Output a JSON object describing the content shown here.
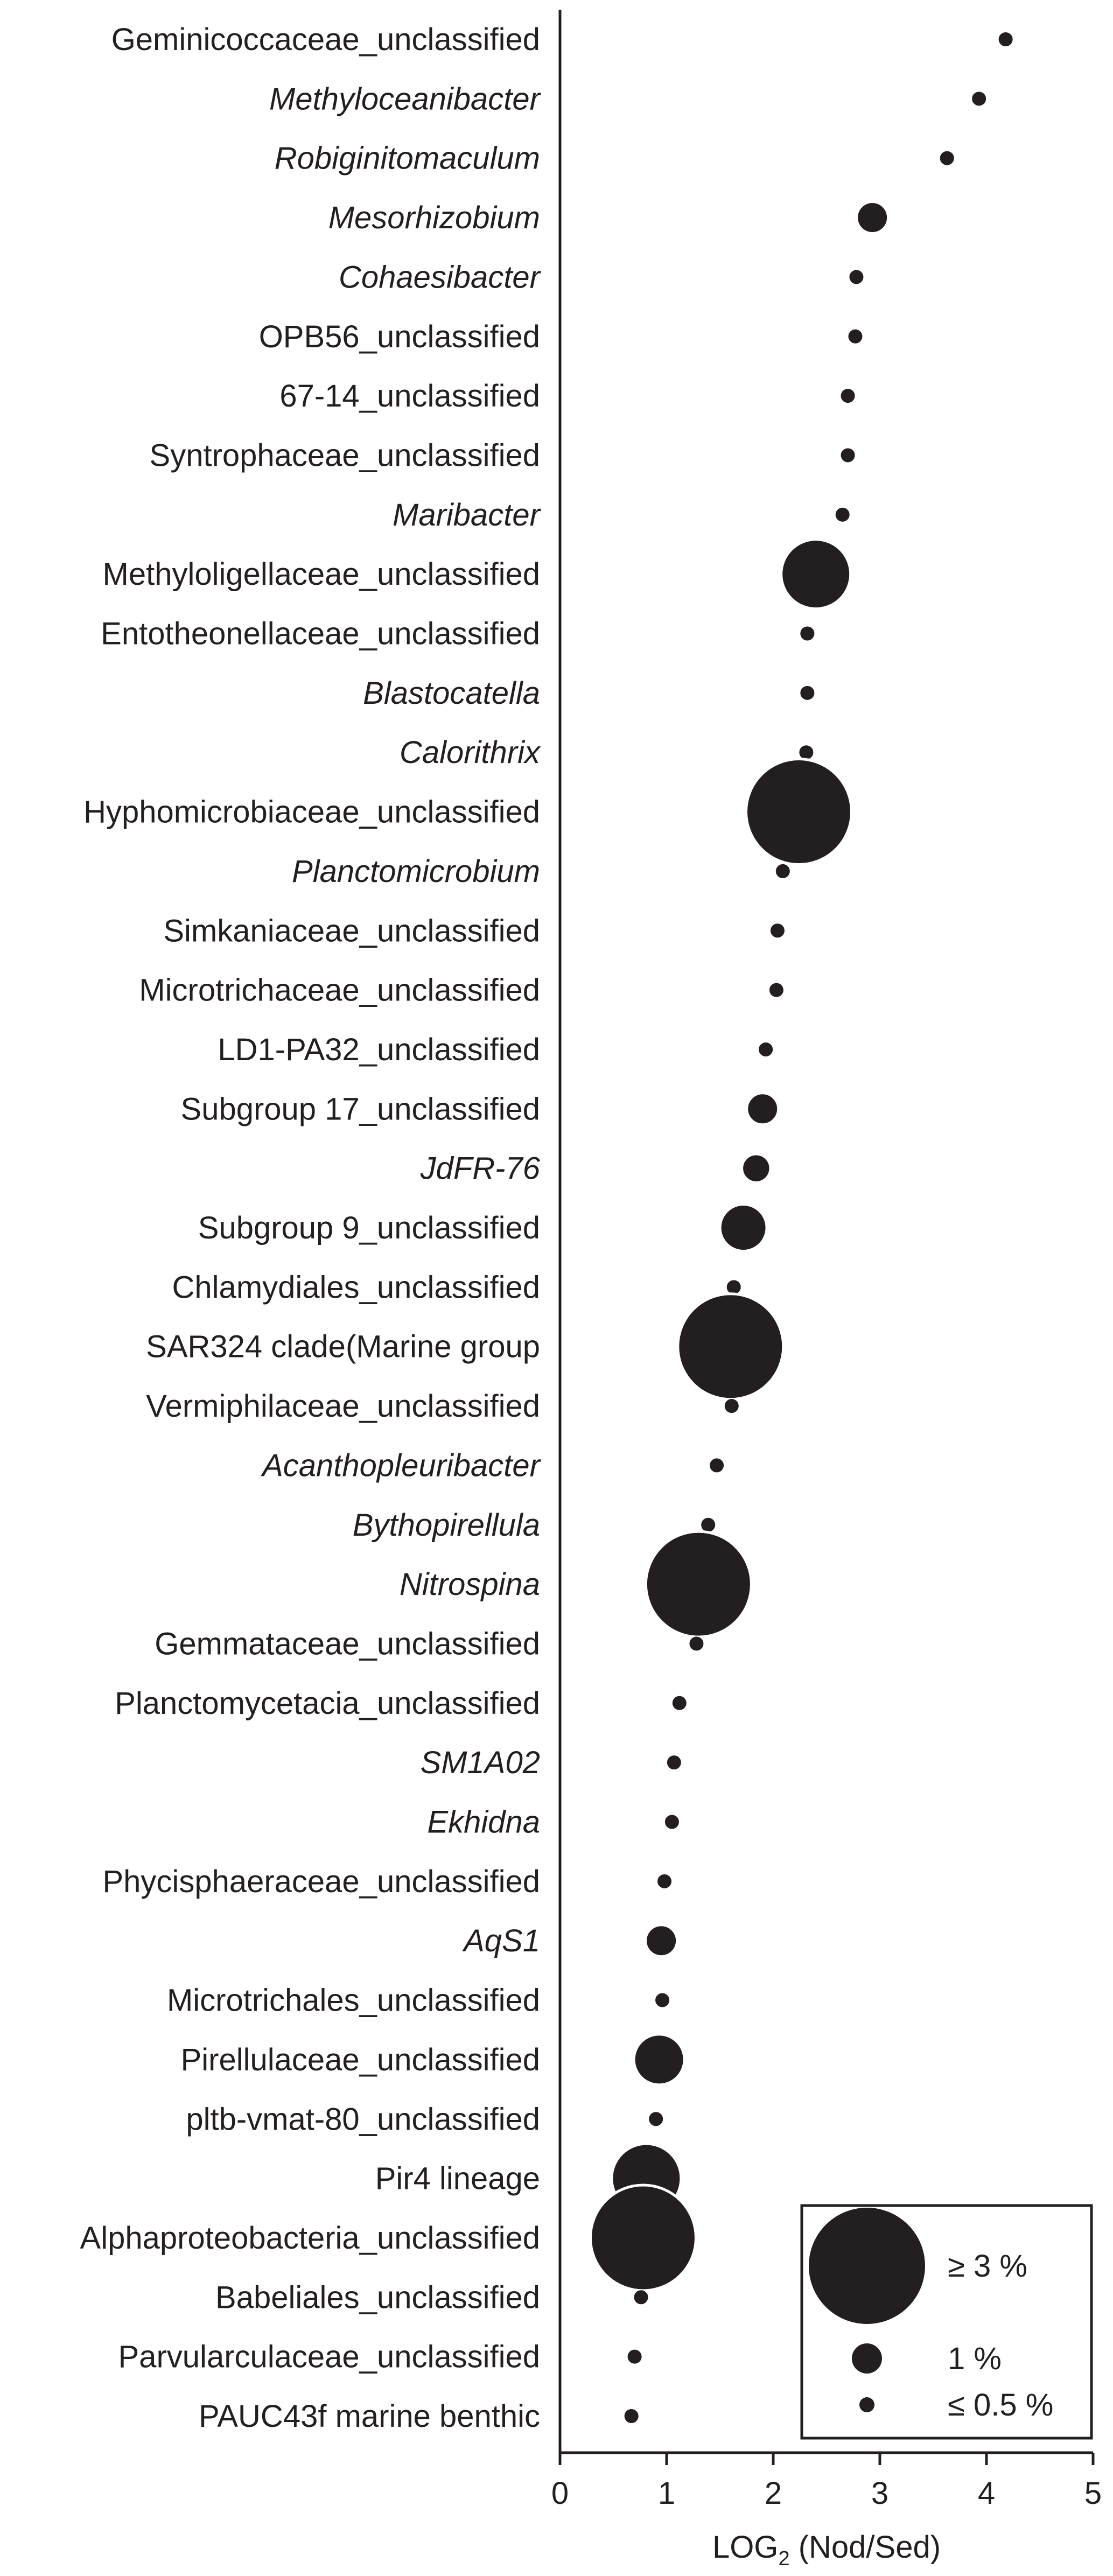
{
  "chart_data": {
    "type": "scatter",
    "title": "",
    "xlabel": "LOG",
    "xlabel_sub": "2",
    "xlabel_suffix": " (Nod/Sed)",
    "ylabel": "",
    "xlim": [
      0,
      5
    ],
    "xticks": [
      "0",
      "1",
      "2",
      "3",
      "4",
      "5"
    ],
    "grid": false,
    "legend_position": "bottom-right",
    "marker_color": "#231f20",
    "categories": [
      {
        "label": "Geminicoccaceae_unclassified",
        "italic": false,
        "x": 4.18,
        "abundance": 0.5
      },
      {
        "label": "Methyloceanibacter",
        "italic": true,
        "x": 3.93,
        "abundance": 0.5
      },
      {
        "label": "Robiginitomaculum",
        "italic": true,
        "x": 3.63,
        "abundance": 0.5
      },
      {
        "label": "Mesorhizobium",
        "italic": true,
        "x": 2.93,
        "abundance": 1.0
      },
      {
        "label": "Cohaesibacter",
        "italic": true,
        "x": 2.78,
        "abundance": 0.5
      },
      {
        "label": "OPB56_unclassified",
        "italic": false,
        "x": 2.77,
        "abundance": 0.5
      },
      {
        "label": "67-14_unclassified",
        "italic": false,
        "x": 2.7,
        "abundance": 0.5
      },
      {
        "label": "Syntrophaceae_unclassified",
        "italic": false,
        "x": 2.7,
        "abundance": 0.5
      },
      {
        "label": "Maribacter",
        "italic": true,
        "x": 2.65,
        "abundance": 0.5
      },
      {
        "label": "Methyloligellaceae_unclassified",
        "italic": false,
        "x": 2.4,
        "abundance": 2.0
      },
      {
        "label": "Entotheonellaceae_unclassified",
        "italic": false,
        "x": 2.32,
        "abundance": 0.5
      },
      {
        "label": "Blastocatella",
        "italic": true,
        "x": 2.32,
        "abundance": 0.5
      },
      {
        "label": "Calorithrix",
        "italic": true,
        "x": 2.31,
        "abundance": 0.5
      },
      {
        "label": "Hyphomicrobiaceae_unclassified",
        "italic": false,
        "x": 2.24,
        "abundance": 3.0
      },
      {
        "label": "Planctomicrobium",
        "italic": true,
        "x": 2.09,
        "abundance": 0.5
      },
      {
        "label": "Simkaniaceae_unclassified",
        "italic": false,
        "x": 2.04,
        "abundance": 0.5
      },
      {
        "label": "Microtrichaceae_unclassified",
        "italic": false,
        "x": 2.03,
        "abundance": 0.5
      },
      {
        "label": "LD1-PA32_unclassified",
        "italic": false,
        "x": 1.93,
        "abundance": 0.5
      },
      {
        "label": "Subgroup 17_unclassified",
        "italic": false,
        "x": 1.9,
        "abundance": 1.0
      },
      {
        "label": "JdFR-76",
        "italic": true,
        "x": 1.84,
        "abundance": 0.9
      },
      {
        "label": "Subgroup 9_unclassified",
        "italic": false,
        "x": 1.72,
        "abundance": 1.4
      },
      {
        "label": "Chlamydiales_unclassified",
        "italic": false,
        "x": 1.63,
        "abundance": 0.5
      },
      {
        "label": "SAR324 clade(Marine group",
        "italic": false,
        "x": 1.6,
        "abundance": 3.0
      },
      {
        "label": "Vermiphilaceae_unclassified",
        "italic": false,
        "x": 1.61,
        "abundance": 0.5
      },
      {
        "label": "Acanthopleuribacter",
        "italic": true,
        "x": 1.47,
        "abundance": 0.5
      },
      {
        "label": "Bythopirellula",
        "italic": true,
        "x": 1.39,
        "abundance": 0.5
      },
      {
        "label": "Nitrospina",
        "italic": true,
        "x": 1.3,
        "abundance": 3.0
      },
      {
        "label": "Gemmataceae_unclassified",
        "italic": false,
        "x": 1.28,
        "abundance": 0.5
      },
      {
        "label": "Planctomycetacia_unclassified",
        "italic": false,
        "x": 1.12,
        "abundance": 0.5
      },
      {
        "label": "SM1A02",
        "italic": true,
        "x": 1.07,
        "abundance": 0.5
      },
      {
        "label": "Ekhidna",
        "italic": true,
        "x": 1.05,
        "abundance": 0.5
      },
      {
        "label": "Phycisphaeraceae_unclassified",
        "italic": false,
        "x": 0.98,
        "abundance": 0.5
      },
      {
        "label": "AqS1",
        "italic": true,
        "x": 0.95,
        "abundance": 1.0
      },
      {
        "label": "Microtrichales_unclassified",
        "italic": false,
        "x": 0.96,
        "abundance": 0.5
      },
      {
        "label": "Pirellulaceae_unclassified",
        "italic": false,
        "x": 0.93,
        "abundance": 1.5
      },
      {
        "label": "pltb-vmat-80_unclassified",
        "italic": false,
        "x": 0.9,
        "abundance": 0.5
      },
      {
        "label": "Pir4 lineage",
        "italic": false,
        "x": 0.81,
        "abundance": 2.0
      },
      {
        "label": "Alphaproteobacteria_unclassified",
        "italic": false,
        "x": 0.78,
        "abundance": 3.0
      },
      {
        "label": "Babeliales_unclassified",
        "italic": false,
        "x": 0.76,
        "abundance": 0.5
      },
      {
        "label": "Parvularculaceae_unclassified",
        "italic": false,
        "x": 0.7,
        "abundance": 0.5
      },
      {
        "label": "PAUC43f marine benthic",
        "italic": false,
        "x": 0.67,
        "abundance": 0.5
      }
    ],
    "legend": [
      {
        "label": "≥ 3 %",
        "abundance": 3.0
      },
      {
        "label": "1 %",
        "abundance": 1.0
      },
      {
        "label": "≤ 0.5 %",
        "abundance": 0.5
      }
    ]
  }
}
